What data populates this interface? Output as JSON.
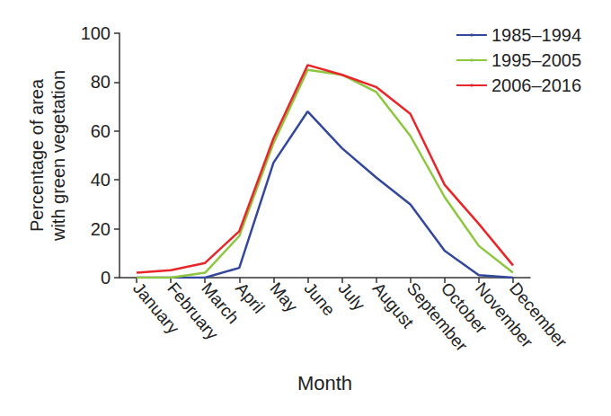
{
  "chart_data": {
    "type": "line",
    "x_label": "Month",
    "y_label": "Percentage of area\nwith green vegetation",
    "categories": [
      "January",
      "February",
      "March",
      "April",
      "May",
      "June",
      "July",
      "August",
      "September",
      "October",
      "November",
      "December"
    ],
    "series": [
      {
        "name": "1985–1994",
        "color": "#33479b",
        "values": [
          0,
          0,
          0,
          4,
          47,
          68,
          53,
          41,
          30,
          11,
          1,
          0
        ]
      },
      {
        "name": "1995–2005",
        "color": "#8dc63f",
        "values": [
          0,
          0,
          2,
          17,
          55,
          85,
          83,
          76,
          58,
          33,
          13,
          2
        ]
      },
      {
        "name": "2006–2016",
        "color": "#e8262a",
        "values": [
          2,
          3,
          6,
          19,
          57,
          87,
          83,
          78,
          67,
          38,
          22,
          5
        ]
      }
    ],
    "ylim": [
      0,
      100
    ],
    "yticks": [
      0,
      20,
      40,
      60,
      80,
      100
    ],
    "grid": false,
    "legend": "upper right"
  }
}
